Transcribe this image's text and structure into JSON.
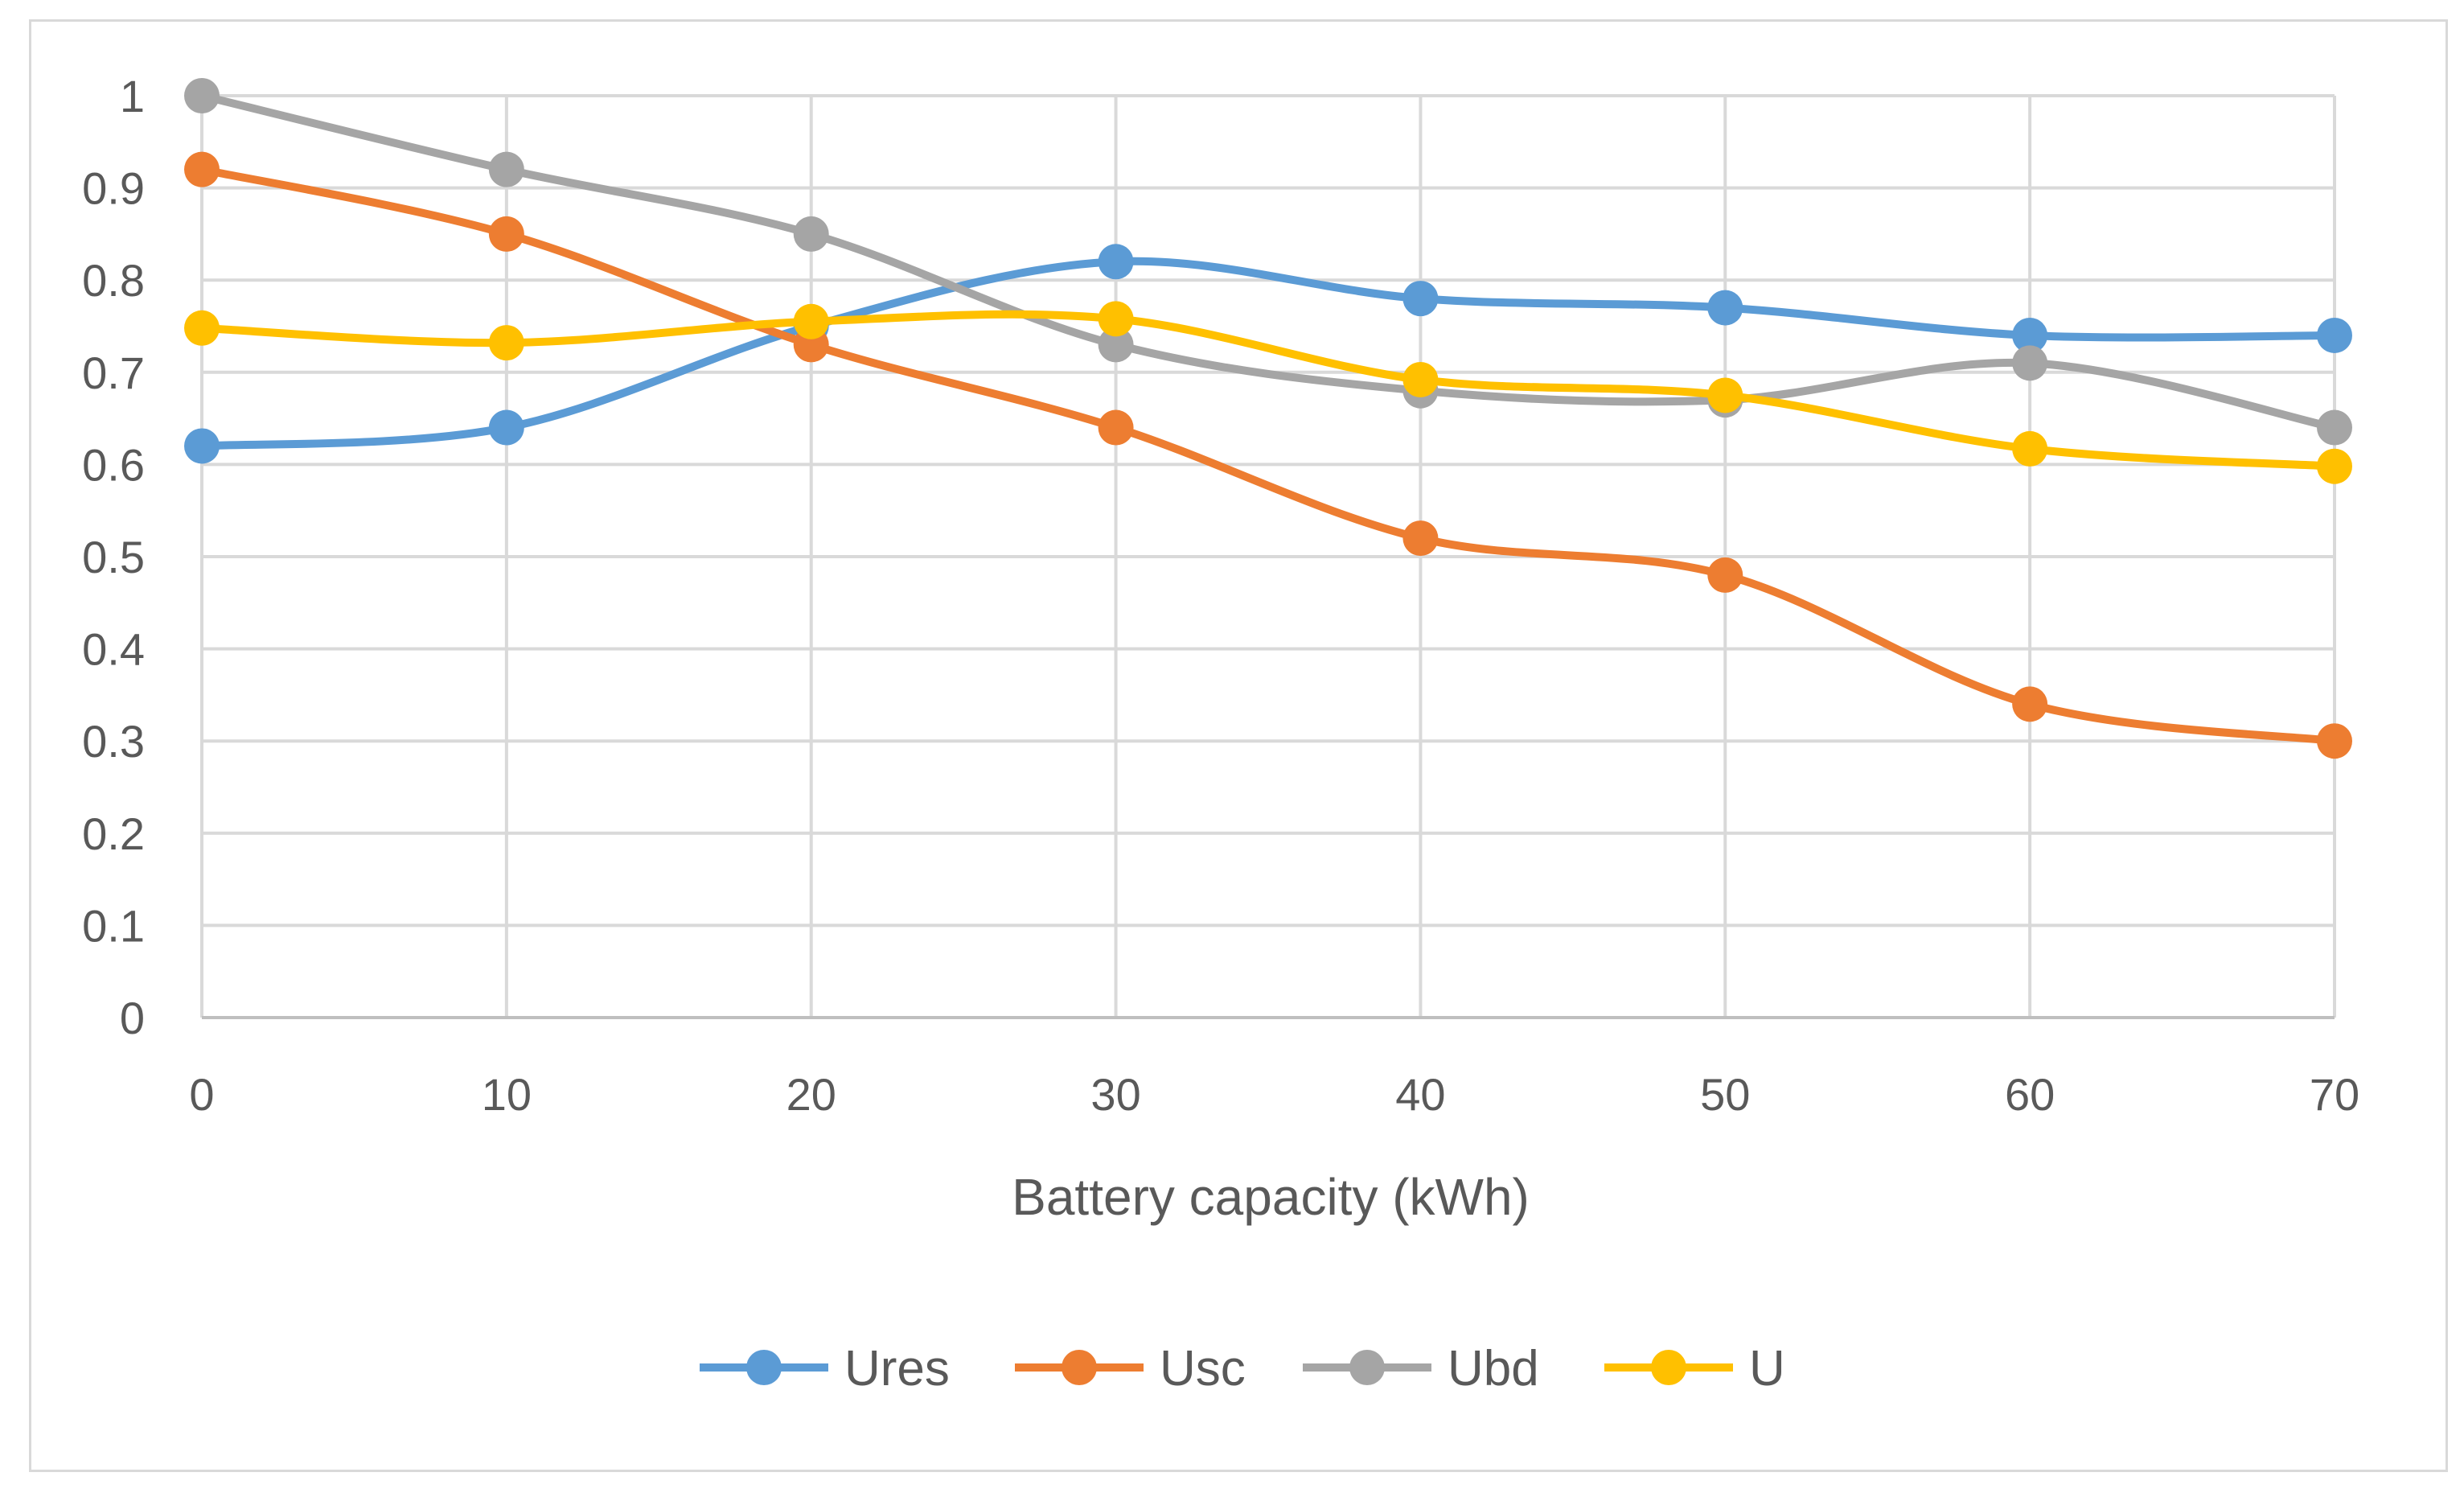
{
  "chart_data": {
    "type": "line",
    "smooth": true,
    "title": "",
    "xlabel": "Battery capacity (kWh)",
    "ylabel": "",
    "x": [
      0,
      10,
      20,
      30,
      40,
      50,
      60,
      70
    ],
    "x_tick_labels": [
      "0",
      "10",
      "20",
      "30",
      "40",
      "50",
      "60",
      "70"
    ],
    "y_tick_labels": [
      "0",
      "0.1",
      "0.2",
      "0.3",
      "0.4",
      "0.5",
      "0.6",
      "0.7",
      "0.8",
      "0.9",
      "1"
    ],
    "ylim": [
      0,
      1
    ],
    "grid": true,
    "legend_position": "bottom",
    "series": [
      {
        "name": "Ures",
        "color": "#5b9bd5",
        "values": [
          0.62,
          0.64,
          0.75,
          0.82,
          0.78,
          0.77,
          0.74,
          0.74
        ]
      },
      {
        "name": "Usc",
        "color": "#ed7d31",
        "values": [
          0.92,
          0.85,
          0.73,
          0.64,
          0.52,
          0.48,
          0.34,
          0.3
        ]
      },
      {
        "name": "Ubd",
        "color": "#a5a5a5",
        "values": [
          1.0,
          0.92,
          0.85,
          0.73,
          0.68,
          0.67,
          0.71,
          0.64
        ]
      },
      {
        "name": "U",
        "color": "#ffc000",
        "values": [
          0.748,
          0.732,
          0.755,
          0.758,
          0.692,
          0.675,
          0.617,
          0.598
        ]
      }
    ]
  }
}
